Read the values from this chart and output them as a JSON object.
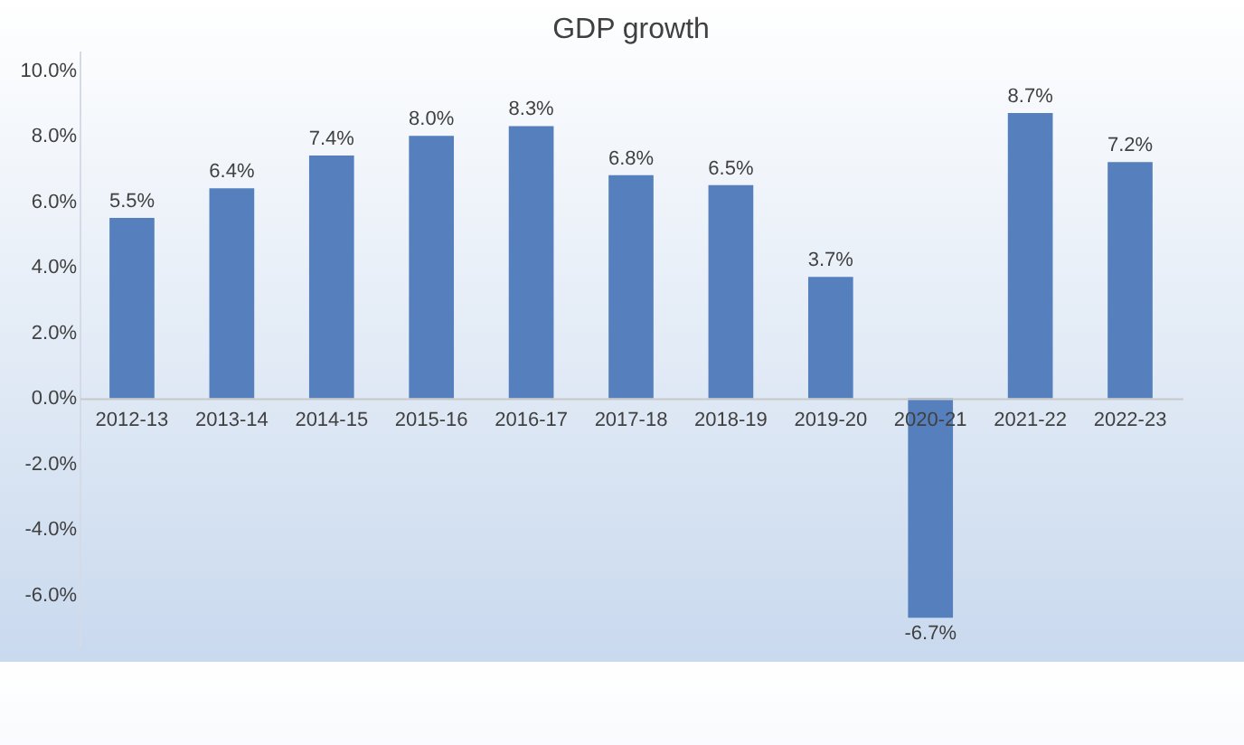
{
  "chart_data": {
    "type": "bar",
    "title": "GDP growth",
    "categories": [
      "2012-13",
      "2013-14",
      "2014-15",
      "2015-16",
      "2016-17",
      "2017-18",
      "2018-19",
      "2019-20",
      "2020-21",
      "2021-22",
      "2022-23"
    ],
    "values": [
      5.5,
      6.4,
      7.4,
      8.0,
      8.3,
      6.8,
      6.5,
      3.7,
      -6.7,
      8.7,
      7.2
    ],
    "value_labels": [
      "5.5%",
      "6.4%",
      "7.4%",
      "8.0%",
      "8.3%",
      "6.8%",
      "6.5%",
      "3.7%",
      "-6.7%",
      "8.7%",
      "7.2%"
    ],
    "color": "#5580bd",
    "ylim": [
      -7.6,
      10.6
    ],
    "yticks": [
      {
        "value": -6,
        "label": "-6.0%"
      },
      {
        "value": -4,
        "label": "-4.0%"
      },
      {
        "value": -2,
        "label": "-2.0%"
      },
      {
        "value": 0,
        "label": "0.0%"
      },
      {
        "value": 2,
        "label": "2.0%"
      },
      {
        "value": 4,
        "label": "4.0%"
      },
      {
        "value": 6,
        "label": "6.0%"
      },
      {
        "value": 8,
        "label": "8.0%"
      },
      {
        "value": 10,
        "label": "10.0%"
      }
    ],
    "grid": false
  }
}
